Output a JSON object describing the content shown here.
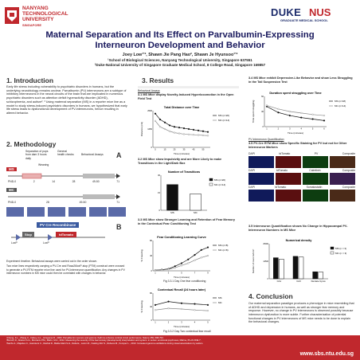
{
  "header": {
    "ntu_name_line1": "NANYANG",
    "ntu_name_line2": "TECHNOLOGICAL",
    "ntu_name_line3": "UNIVERSITY",
    "ntu_sub": "SINGAPORE",
    "duke": "DUKE",
    "nus": "NUS",
    "duke_sub": "GRADUATE MEDICAL SCHOOL",
    "title_line1": "Maternal Separation and Its Effect on Parvalbumin-Expressing",
    "title_line2": "Interneuron Development and Behavior",
    "authors": "Joey Low¹ʼ², Shawn Jie Pang Hao², Shawn Je Hyunsoo¹ʼ²",
    "affil1": "¹School of Biological Sciences, Nanyang Technological University, Singapore 637551",
    "affil2": "²Duke-National University of Singapore Graduate Medical School, 8 College Road, Singapore 169857"
  },
  "intro": {
    "heading": "1. Introduction",
    "body": "Early life stress including vulnerability to psychiatric disorders in humans, but the underlying neurobiology remains unclear. Parvalbumin (PV) interneurons are a subtype of inhibitory interneurons in the neural circuits of the brain that are implicated in numerous psychiatric disorders such as attention deficit hyperactivity disorder (ADHD), schizophrenia, and autism². ³ Using maternal separation (MS) in a reporter mice line as a model to study stress-induced psychiatric disorders in humans, we hypothesized that early life stress leads to dysfunctional development of PV-interneurons, hence resulting in altered behavior."
  },
  "methodology": {
    "heading": "2. Methodology",
    "label_a": "A",
    "label_b": "B",
    "ms": "MS",
    "mc": "MC",
    "sep_note": "Separation of pups from dam 3 hours daily",
    "weaning": "Weaning",
    "genotyping": "General health checks",
    "behav": "Behavioral Assays",
    "pnd_ms": [
      "PND-0",
      "2",
      "14",
      "28",
      "49-50",
      "71"
    ],
    "pnd_mc": [
      "PND-0",
      "",
      "28",
      "49-50",
      "71"
    ],
    "cre": "PV Cre Recombinase",
    "stop": "Stop",
    "tdtomato": "tdTomato",
    "loxp1": "LoxP",
    "loxp2": "LoxP",
    "notes": [
      "Experiment timeline. Behavioral assays were carried out in the order shown.",
      "Two mice lines respectively carrying a PV-Cre and Rosa26loxP-stop (PTM) construct were crossed to generate a PV-RTM reporter mice line used for PV-interneuron quantification. Any changes in PV interneuron numbers in MS mice could then be correlated with changes in behavior."
    ]
  },
  "results": {
    "heading": "3. Results",
    "behav_label": "Behavioral Assays",
    "r31": "3.1 MS Mice display Novelty-Induced Hyperlocomotion in the Open Field Test",
    "r32": "3.2 MS Mice show Impulsivity and are More Likely to make Transitions in the Light/Dark Box",
    "r33": "3.3 MS Mice show Stronger Learning and Retention of Fear Memory in the Contextual Fear Conditioning Test",
    "r34": "3.4 MS Mice exhibit Depressive-Like Behavior and show Less Struggling in the Tail Suspension Test",
    "quant_label": "PV Interneuron Quantification",
    "r35a": "3.5 PV-Cre RTM Mice show Specific Staining for PV but not for Other Interneuron Markers",
    "r35b": "3.5 Interneuron Quantification shows No Change in Hippocampal PV-Interneuron Numbers in MS Mice",
    "fig3a_caption": "Fig 3.3.1 Day One fear conditioning",
    "fig3b_caption": "Fig 3.3.2 Day Two contextual fear recall"
  },
  "stains": {
    "row_labels": [
      "DAPI",
      "tdTomato",
      "PV",
      "Composite"
    ],
    "row2": [
      "DAPI",
      "tdTomato",
      "Calretinin",
      "Composite"
    ],
    "row3": [
      "DAPI",
      "tdTomato",
      "Somatostatin",
      "Composite"
    ]
  },
  "conclusion": {
    "heading": "4. Conclusion",
    "body": "Our maternal separation paradigm produces a phenotype in mice resembling that of ADHD and depression in humans, as well as stronger fear memory and response. However, no change in PV interneurons is observed possibly because interneuron dysfunction is more subtle. Further characterization of potential functional changes in PV interneurons of MS mice needs to be done to explain the behavioral changes."
  },
  "references": [
    "¹Chong, K.L., Zhang C., Fahey, G.L., Hirayama R., 2000. Parvalbumin neurons and gamma rhythms enhance cortical circuit performance. Nature 459, 698-702.",
    "²Borrell, R., Alvarez A.G., Mcmanis P.M., Mahn, M.A., 2012. Measuring the severity of the fear anxiety (development) interpretation and system. in series: emotional psychoses, Mahne, PLoS ONE 7.",
    "³Sachs A., Majettes C., Hamsters C., Rachel R., Battle-Marti S.H., Delta E., Lamm R., Fasting-Kitz S., Rebeca M., Kompec L., 2013. Increased gamma oscillations during visual associations by autism."
  ],
  "footer_url": "www.sbs.ntu.edu.sg",
  "colors": {
    "ntu_red": "#c0282d",
    "nus_navy": "#1c2b6b",
    "ms_line": "#1a1a1a",
    "mc_line": "#1a1a1a"
  },
  "chart_data": [
    {
      "type": "line",
      "title": "Total Distance over Time",
      "xlabel": "Time (minutes)",
      "ylabel": "Distance (cm)",
      "x": [
        5,
        10,
        15,
        20,
        25,
        30,
        35,
        40,
        45,
        50,
        55,
        60
      ],
      "series": [
        {
          "name": "MS (n=20)",
          "values": [
            2300,
            1900,
            1700,
            1500,
            1400,
            1350,
            1300,
            1250,
            1200,
            1150,
            1100,
            1050
          ]
        },
        {
          "name": "MC (n=14)",
          "values": [
            1800,
            1400,
            1250,
            1100,
            1000,
            950,
            900,
            880,
            860,
            840,
            820,
            800
          ]
        }
      ],
      "ylim": [
        0,
        2500
      ]
    },
    {
      "type": "bar",
      "title": "Number of Transitions",
      "categories": [
        "MS",
        "MC"
      ],
      "values": [
        22,
        14
      ],
      "series_names": [
        "MS (n=20)",
        "MC (n=14)"
      ],
      "ylim": [
        0,
        30
      ]
    },
    {
      "type": "line",
      "title": "Fear Conditioning Learning Curve",
      "xlabel": "Time (minutes)",
      "ylabel": "% Freezing",
      "x": [
        1,
        2,
        3,
        4,
        5,
        6,
        7,
        8,
        9
      ],
      "series": [
        {
          "name": "MS (n=8)",
          "values": [
            2,
            3,
            5,
            12,
            20,
            30,
            42,
            55,
            62
          ]
        },
        {
          "name": "MC (n=8)",
          "values": [
            2,
            2,
            4,
            8,
            14,
            20,
            28,
            35,
            40
          ]
        }
      ],
      "ylim": [
        0,
        80
      ]
    },
    {
      "type": "line",
      "title": "Contextual Recall (24 hours later)",
      "xlabel": "Time (minutes)",
      "ylabel": "% Freezing",
      "x": [
        1,
        2,
        3,
        4,
        5
      ],
      "series": [
        {
          "name": "MS",
          "values": [
            45,
            55,
            50,
            48,
            45
          ]
        },
        {
          "name": "MC",
          "values": [
            30,
            35,
            33,
            30,
            28
          ]
        }
      ],
      "ylim": [
        0,
        80
      ]
    },
    {
      "type": "line",
      "title": "Duration spent struggling over Time",
      "xlabel": "Time (minutes)",
      "ylabel": "Time spent struggling",
      "x": [
        1,
        2,
        3,
        4,
        5,
        6
      ],
      "series": [
        {
          "name": "MS (n=18)",
          "values": [
            40,
            28,
            22,
            18,
            15,
            12
          ]
        },
        {
          "name": "MC (n=14)",
          "values": [
            42,
            35,
            30,
            27,
            24,
            22
          ]
        }
      ],
      "ylim": [
        0,
        60
      ]
    },
    {
      "type": "bar",
      "title": "Numerical density",
      "categories": [
        "CA1",
        "CA3",
        "Dentate Gyrus"
      ],
      "series": [
        {
          "name": "MS (n = 3)",
          "values": [
            15000,
            16000,
            5000
          ]
        },
        {
          "name": "MC (n = 3)",
          "values": [
            14000,
            15500,
            4800
          ]
        }
      ],
      "ylabel": "Number of neurons/mm³",
      "ylim": [
        0,
        25000
      ]
    }
  ]
}
